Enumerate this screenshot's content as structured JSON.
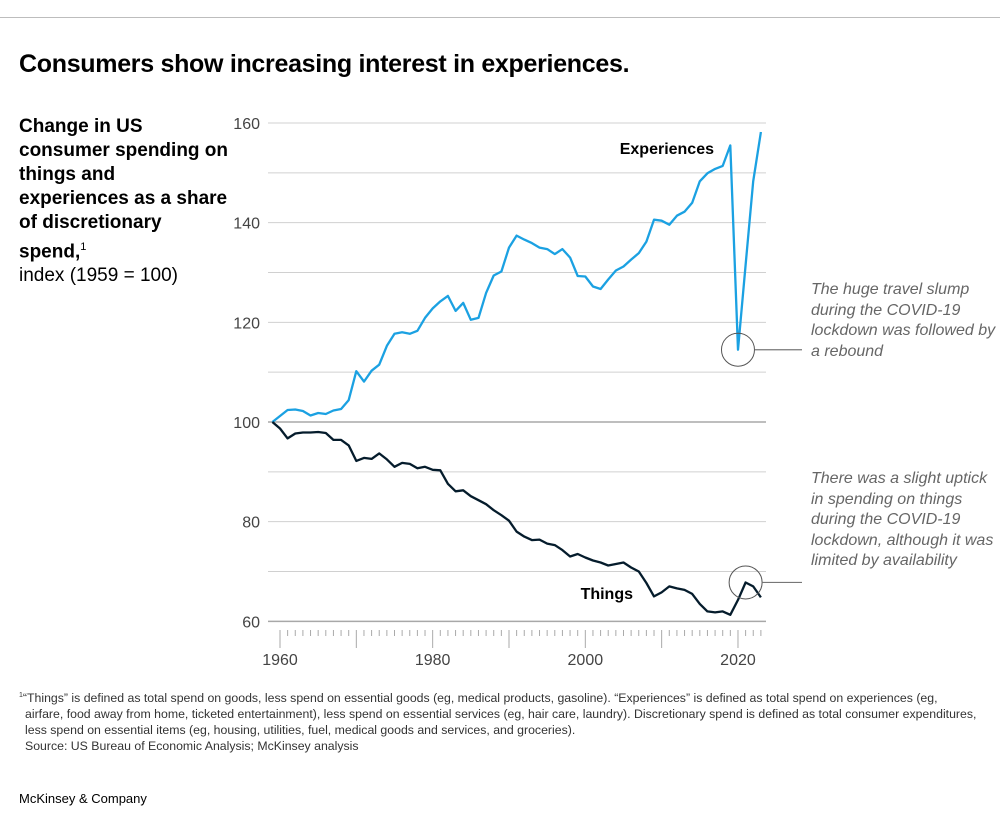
{
  "header": {
    "title": "Consumers show increasing interest in experiences."
  },
  "subtitle": {
    "bold": "Change in US consumer spending on things and experiences as a share of discretionary spend,",
    "footnote_mark": "1",
    "unit": "index (1959 = 100)"
  },
  "annotations": [
    {
      "text": "The huge travel slump during the COVID-19 lockdown was followed by a rebound",
      "series": "Experiences",
      "year": 2020
    },
    {
      "text": "There was a slight uptick in spending on things during the COVID-19 lockdown, although it was limited by availability",
      "series": "Things",
      "year": 2021
    }
  ],
  "footnote": {
    "mark": "1",
    "text": "“Things” is defined as total spend on goods, less spend on essential goods (eg, medical products, gasoline). “Experiences” is defined as total spend on experiences (eg, airfare, food away from home, ticketed entertainment), less spend on essential services (eg, hair care, laundry). Discretionary spend is defined as total consumer expenditures, less spend on essential items (eg, housing, utilities, fuel, medical goods and services, and groceries).",
    "source": "Source: US Bureau of Economic Analysis; McKinsey analysis"
  },
  "brand": "McKinsey & Company",
  "colors": {
    "experiences": "#1ba1e2",
    "things": "#051c2c",
    "grid": "#d0d0d0",
    "annotation": "#666666"
  },
  "chart_data": {
    "type": "line",
    "title": "Consumers show increasing interest in experiences.",
    "ylabel": "index (1959 = 100)",
    "xlim": [
      1959,
      2023
    ],
    "ylim": [
      60,
      160
    ],
    "x_ticks": [
      1960,
      1980,
      2000,
      2020
    ],
    "y_ticks": [
      60,
      80,
      100,
      120,
      140,
      160
    ],
    "grid": true,
    "legend": "inline labels",
    "x_start": 1959,
    "series": [
      {
        "name": "Experiences",
        "values": [
          100,
          101.2,
          102.4,
          102.5,
          102.2,
          101.3,
          101.8,
          101.6,
          102.3,
          102.6,
          104.4,
          110.2,
          108.1,
          110.3,
          111.5,
          115.3,
          117.7,
          118,
          117.7,
          118.3,
          120.9,
          122.8,
          124.2,
          125.3,
          122.3,
          123.9,
          120.5,
          120.9,
          125.9,
          129.4,
          130.2,
          135,
          137.4,
          136.6,
          135.9,
          135,
          134.7,
          133.7,
          134.7,
          133,
          129.3,
          129.2,
          127.2,
          126.7,
          128.6,
          130.4,
          131.2,
          132.6,
          133.9,
          136.2,
          140.6,
          140.4,
          139.6,
          141.4,
          142.2,
          144,
          148.3,
          149.9,
          150.8,
          151.4,
          155.5,
          114.5,
          131.5,
          148.3,
          158.2
        ]
      },
      {
        "name": "Things",
        "values": [
          100,
          98.7,
          96.7,
          97.7,
          97.9,
          97.9,
          98,
          97.8,
          96.4,
          96.4,
          95.3,
          92.2,
          92.8,
          92.6,
          93.7,
          92.5,
          91,
          91.8,
          91.6,
          90.7,
          91,
          90.4,
          90.3,
          87.6,
          86.1,
          86.3,
          85.1,
          84.3,
          83.5,
          82.3,
          81.3,
          80.2,
          78,
          77,
          76.3,
          76.4,
          75.6,
          75.3,
          74.3,
          73,
          73.5,
          72.8,
          72.2,
          71.8,
          71.2,
          71.5,
          71.8,
          70.8,
          70,
          67.7,
          65,
          65.8,
          67,
          66.6,
          66.3,
          65.5,
          63.5,
          62,
          61.8,
          62,
          61.3,
          64.3,
          67.8,
          67,
          64.8
        ]
      }
    ]
  }
}
